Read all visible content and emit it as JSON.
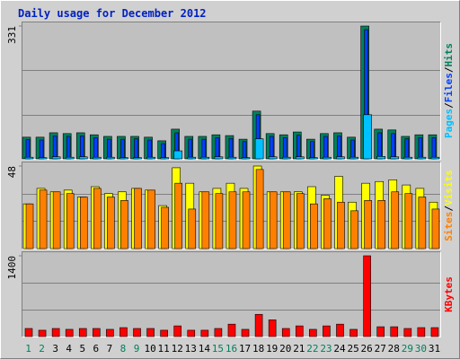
{
  "title": "Daily usage for December 2012",
  "legend_separator": "/",
  "chart_data": [
    {
      "type": "bar",
      "ylim": [
        0,
        331
      ],
      "yticks": [
        331
      ],
      "series": [
        {
          "name": "Hits",
          "color": "#00805c",
          "values": [
            54,
            54,
            65,
            63,
            65,
            60,
            56,
            56,
            56,
            54,
            45,
            74,
            56,
            56,
            60,
            58,
            49,
            119,
            63,
            60,
            67,
            49,
            63,
            65,
            54,
            331,
            74,
            72,
            56,
            60,
            60
          ]
        },
        {
          "name": "Files",
          "color": "#0040ff",
          "values": [
            48,
            47,
            57,
            56,
            57,
            53,
            49,
            49,
            50,
            47,
            38,
            65,
            49,
            49,
            53,
            51,
            43,
            110,
            56,
            53,
            59,
            43,
            56,
            57,
            47,
            322,
            65,
            63,
            50,
            53,
            53
          ]
        },
        {
          "name": "Pages",
          "color": "#00c0ff",
          "values": [
            4,
            3,
            5,
            4,
            5,
            4,
            4,
            3,
            3,
            4,
            3,
            20,
            4,
            4,
            5,
            4,
            3,
            50,
            5,
            4,
            5,
            3,
            4,
            5,
            4,
            110,
            6,
            5,
            4,
            4,
            4
          ]
        }
      ],
      "legend_order": [
        2,
        1,
        0
      ]
    },
    {
      "type": "bar",
      "ylim": [
        0,
        48
      ],
      "yticks": [
        48
      ],
      "series": [
        {
          "name": "Visits",
          "color": "#ffff00",
          "values": [
            26,
            35,
            33,
            34,
            30,
            36,
            32,
            33,
            35,
            34,
            25,
            47,
            38,
            33,
            35,
            38,
            35,
            48,
            33,
            33,
            33,
            36,
            31,
            42,
            27,
            38,
            39,
            40,
            37,
            35,
            27
          ]
        },
        {
          "name": "Sites",
          "color": "#ff8000",
          "values": [
            26,
            34,
            33,
            32,
            30,
            35,
            30,
            28,
            35,
            34,
            24,
            38,
            23,
            33,
            32,
            33,
            33,
            46,
            33,
            33,
            32,
            26,
            29,
            27,
            22,
            28,
            28,
            33,
            32,
            30,
            23
          ]
        }
      ],
      "legend_order": [
        1,
        0
      ]
    },
    {
      "type": "bar",
      "ylim": [
        0,
        1400
      ],
      "yticks": [
        1400
      ],
      "categories": [
        "1",
        "2",
        "3",
        "4",
        "5",
        "6",
        "7",
        "8",
        "9",
        "10",
        "11",
        "12",
        "13",
        "14",
        "15",
        "16",
        "17",
        "18",
        "19",
        "20",
        "21",
        "22",
        "23",
        "24",
        "25",
        "26",
        "27",
        "28",
        "29",
        "30",
        "31"
      ],
      "category_colors": [
        "#00805c",
        "#00805c",
        "#000000",
        "#000000",
        "#000000",
        "#000000",
        "#000000",
        "#00805c",
        "#00805c",
        "#000000",
        "#000000",
        "#000000",
        "#000000",
        "#000000",
        "#00805c",
        "#00805c",
        "#000000",
        "#000000",
        "#000000",
        "#000000",
        "#000000",
        "#00805c",
        "#00805c",
        "#000000",
        "#000000",
        "#000000",
        "#000000",
        "#000000",
        "#00805c",
        "#00805c",
        "#000000"
      ],
      "series": [
        {
          "name": "KBytes",
          "color": "#ff0000",
          "values": [
            140,
            110,
            140,
            125,
            140,
            140,
            125,
            155,
            140,
            140,
            110,
            185,
            110,
            110,
            140,
            215,
            125,
            385,
            290,
            140,
            185,
            125,
            185,
            215,
            125,
            1400,
            170,
            170,
            140,
            155,
            155
          ]
        }
      ],
      "legend_order": [
        0
      ]
    }
  ]
}
